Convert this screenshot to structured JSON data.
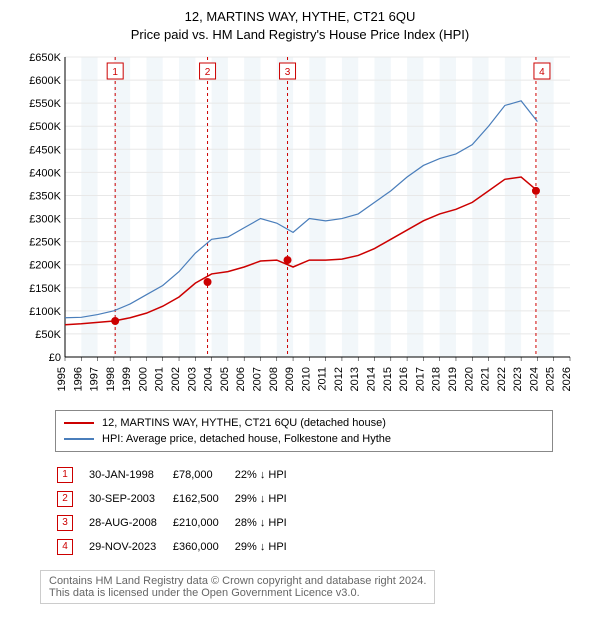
{
  "title_line1": "12, MARTINS WAY, HYTHE, CT21 6QU",
  "title_line2": "Price paid vs. HM Land Registry's House Price Index (HPI)",
  "chart": {
    "type": "line",
    "background_color": "#ffffff",
    "alt_band_color": "#f2f7fa",
    "grid_color": "#e8e8e8",
    "ylim": [
      0,
      650000
    ],
    "ytick_step": 50000,
    "y_ticks": [
      "£0",
      "£50K",
      "£100K",
      "£150K",
      "£200K",
      "£250K",
      "£300K",
      "£350K",
      "£400K",
      "£450K",
      "£500K",
      "£550K",
      "£600K",
      "£650K"
    ],
    "x_years": [
      1995,
      1996,
      1997,
      1998,
      1999,
      2000,
      2001,
      2002,
      2003,
      2004,
      2005,
      2006,
      2007,
      2008,
      2009,
      2010,
      2011,
      2012,
      2013,
      2014,
      2015,
      2016,
      2017,
      2018,
      2019,
      2020,
      2021,
      2022,
      2023,
      2024,
      2025,
      2026
    ],
    "series": [
      {
        "name": "subject",
        "color": "#cc0000",
        "line_width": 1.5,
        "points": [
          [
            1995,
            70000
          ],
          [
            1996,
            72000
          ],
          [
            1997,
            75000
          ],
          [
            1998,
            78000
          ],
          [
            1999,
            85000
          ],
          [
            2000,
            95000
          ],
          [
            2001,
            110000
          ],
          [
            2002,
            130000
          ],
          [
            2003,
            160000
          ],
          [
            2004,
            180000
          ],
          [
            2005,
            185000
          ],
          [
            2006,
            195000
          ],
          [
            2007,
            208000
          ],
          [
            2008,
            210000
          ],
          [
            2009,
            195000
          ],
          [
            2010,
            210000
          ],
          [
            2011,
            210000
          ],
          [
            2012,
            212000
          ],
          [
            2013,
            220000
          ],
          [
            2014,
            235000
          ],
          [
            2015,
            255000
          ],
          [
            2016,
            275000
          ],
          [
            2017,
            295000
          ],
          [
            2018,
            310000
          ],
          [
            2019,
            320000
          ],
          [
            2020,
            335000
          ],
          [
            2021,
            360000
          ],
          [
            2022,
            385000
          ],
          [
            2023,
            390000
          ],
          [
            2024,
            360000
          ]
        ]
      },
      {
        "name": "hpi",
        "color": "#4a7ebb",
        "line_width": 1.2,
        "points": [
          [
            1995,
            85000
          ],
          [
            1996,
            86000
          ],
          [
            1997,
            92000
          ],
          [
            1998,
            100000
          ],
          [
            1999,
            115000
          ],
          [
            2000,
            135000
          ],
          [
            2001,
            155000
          ],
          [
            2002,
            185000
          ],
          [
            2003,
            225000
          ],
          [
            2004,
            255000
          ],
          [
            2005,
            260000
          ],
          [
            2006,
            280000
          ],
          [
            2007,
            300000
          ],
          [
            2008,
            290000
          ],
          [
            2009,
            270000
          ],
          [
            2010,
            300000
          ],
          [
            2011,
            295000
          ],
          [
            2012,
            300000
          ],
          [
            2013,
            310000
          ],
          [
            2014,
            335000
          ],
          [
            2015,
            360000
          ],
          [
            2016,
            390000
          ],
          [
            2017,
            415000
          ],
          [
            2018,
            430000
          ],
          [
            2019,
            440000
          ],
          [
            2020,
            460000
          ],
          [
            2021,
            500000
          ],
          [
            2022,
            545000
          ],
          [
            2023,
            555000
          ],
          [
            2024,
            510000
          ]
        ]
      }
    ],
    "sales": [
      {
        "n": "1",
        "year": 1998.08,
        "price": 78000,
        "date": "30-JAN-1998",
        "price_fmt": "£78,000",
        "vs": "22% ↓ HPI"
      },
      {
        "n": "2",
        "year": 2003.75,
        "price": 162500,
        "date": "30-SEP-2003",
        "price_fmt": "£162,500",
        "vs": "29% ↓ HPI"
      },
      {
        "n": "3",
        "year": 2008.66,
        "price": 210000,
        "date": "28-AUG-2008",
        "price_fmt": "£210,000",
        "vs": "28% ↓ HPI"
      },
      {
        "n": "4",
        "year": 2023.91,
        "price": 360000,
        "date": "29-NOV-2023",
        "price_fmt": "£360,000",
        "vs": "29% ↓ HPI"
      }
    ]
  },
  "legend": {
    "subject": "12, MARTINS WAY, HYTHE, CT21 6QU (detached house)",
    "hpi": "HPI: Average price, detached house, Folkestone and Hythe"
  },
  "footer_line1": "Contains HM Land Registry data © Crown copyright and database right 2024.",
  "footer_line2": "This data is licensed under the Open Government Licence v3.0."
}
